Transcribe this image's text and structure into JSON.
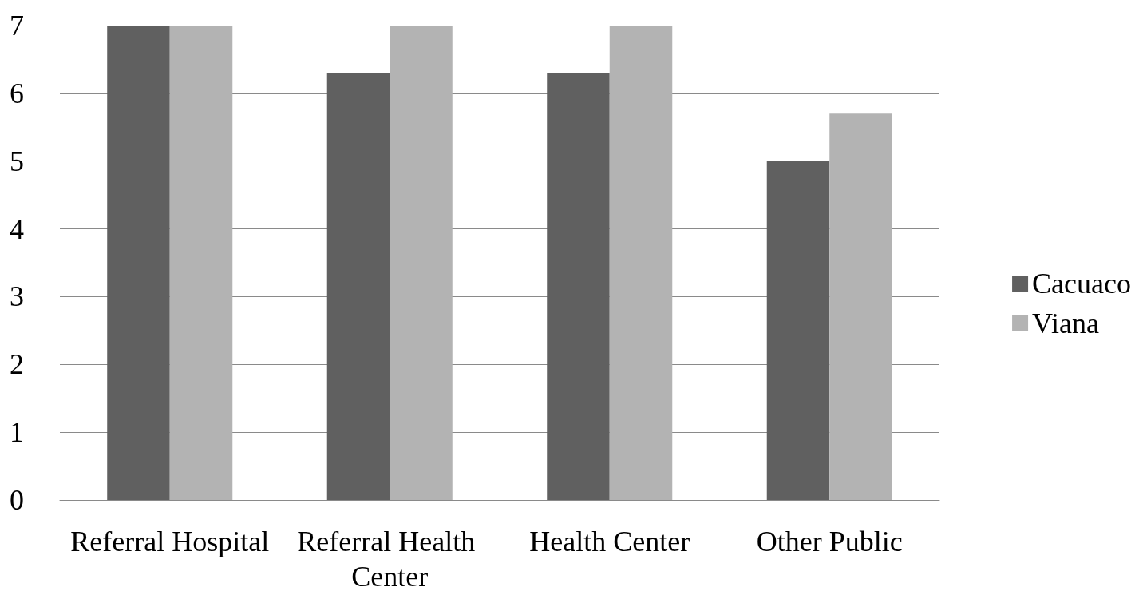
{
  "chart_data": {
    "type": "bar",
    "categories": [
      "Referral Hospital",
      "Referral Health Center",
      "Health Center",
      "Other Public"
    ],
    "series": [
      {
        "name": "Cacuaco",
        "color": "#606060",
        "values": [
          7,
          6.3,
          6.3,
          5.0
        ]
      },
      {
        "name": "Viana",
        "color": "#b3b3b3",
        "values": [
          7,
          7,
          7,
          5.7
        ]
      }
    ],
    "ylim": [
      0,
      7
    ],
    "yticks": [
      0,
      1,
      2,
      3,
      4,
      5,
      6,
      7
    ],
    "grid": "y",
    "legend": "right"
  }
}
